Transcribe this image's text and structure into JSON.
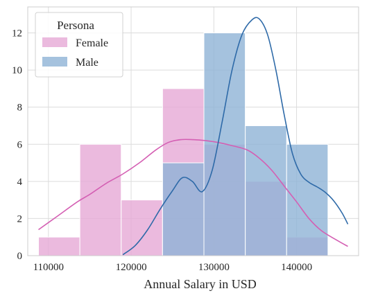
{
  "chart_data": {
    "type": "bar",
    "subtype": "histogram-with-kde",
    "xlabel": "Annual Salary in USD",
    "ylabel": "",
    "xlim": [
      107500,
      147500
    ],
    "ylim": [
      0,
      13.4
    ],
    "xticks": [
      110000,
      120000,
      130000,
      140000
    ],
    "xtick_labels": [
      "110000",
      "120000",
      "130000",
      "140000"
    ],
    "yticks": [
      0,
      2,
      4,
      6,
      8,
      10,
      12
    ],
    "ytick_labels": [
      "0",
      "2",
      "4",
      "6",
      "8",
      "10",
      "12"
    ],
    "grid": true,
    "legend": {
      "title": "Persona",
      "placement": "top-left"
    },
    "bin_edges": [
      108800,
      113800,
      118800,
      123800,
      128800,
      133800,
      138800,
      143800
    ],
    "series": [
      {
        "name": "Female",
        "color": "#e6a9d6",
        "line_color": "#d45fb3",
        "counts": [
          1,
          6,
          3,
          9,
          6,
          4,
          1
        ],
        "kde_x": [
          108800,
          111000,
          113500,
          115000,
          117000,
          119000,
          121000,
          123000,
          124500,
          126000,
          127500,
          129000,
          130500,
          132000,
          134000,
          135500,
          137000,
          138500,
          140000,
          141500,
          143000,
          145000,
          146200
        ],
        "kde_y": [
          1.4,
          2.1,
          2.9,
          3.3,
          3.9,
          4.4,
          5.0,
          5.7,
          6.1,
          6.25,
          6.25,
          6.2,
          6.1,
          5.95,
          5.7,
          5.25,
          4.6,
          3.75,
          2.9,
          2.0,
          1.35,
          0.8,
          0.5
        ]
      },
      {
        "name": "Male",
        "color": "#8fb3d6",
        "line_color": "#2e6aa8",
        "counts": [
          0,
          0,
          0,
          5,
          12,
          7,
          6
        ],
        "kde_x": [
          119000,
          120500,
          122000,
          123500,
          125000,
          126200,
          127400,
          128600,
          129800,
          131000,
          132200,
          133400,
          134600,
          135500,
          136500,
          137500,
          138500,
          139500,
          140500,
          141500,
          142500,
          143500,
          144500,
          145500,
          146200
        ],
        "kde_y": [
          0.05,
          0.55,
          1.4,
          2.5,
          3.5,
          4.2,
          4.0,
          3.45,
          4.6,
          7.2,
          10.0,
          11.9,
          12.7,
          12.75,
          11.9,
          10.0,
          7.6,
          5.5,
          4.4,
          3.95,
          3.7,
          3.4,
          2.95,
          2.3,
          1.7
        ]
      }
    ]
  }
}
